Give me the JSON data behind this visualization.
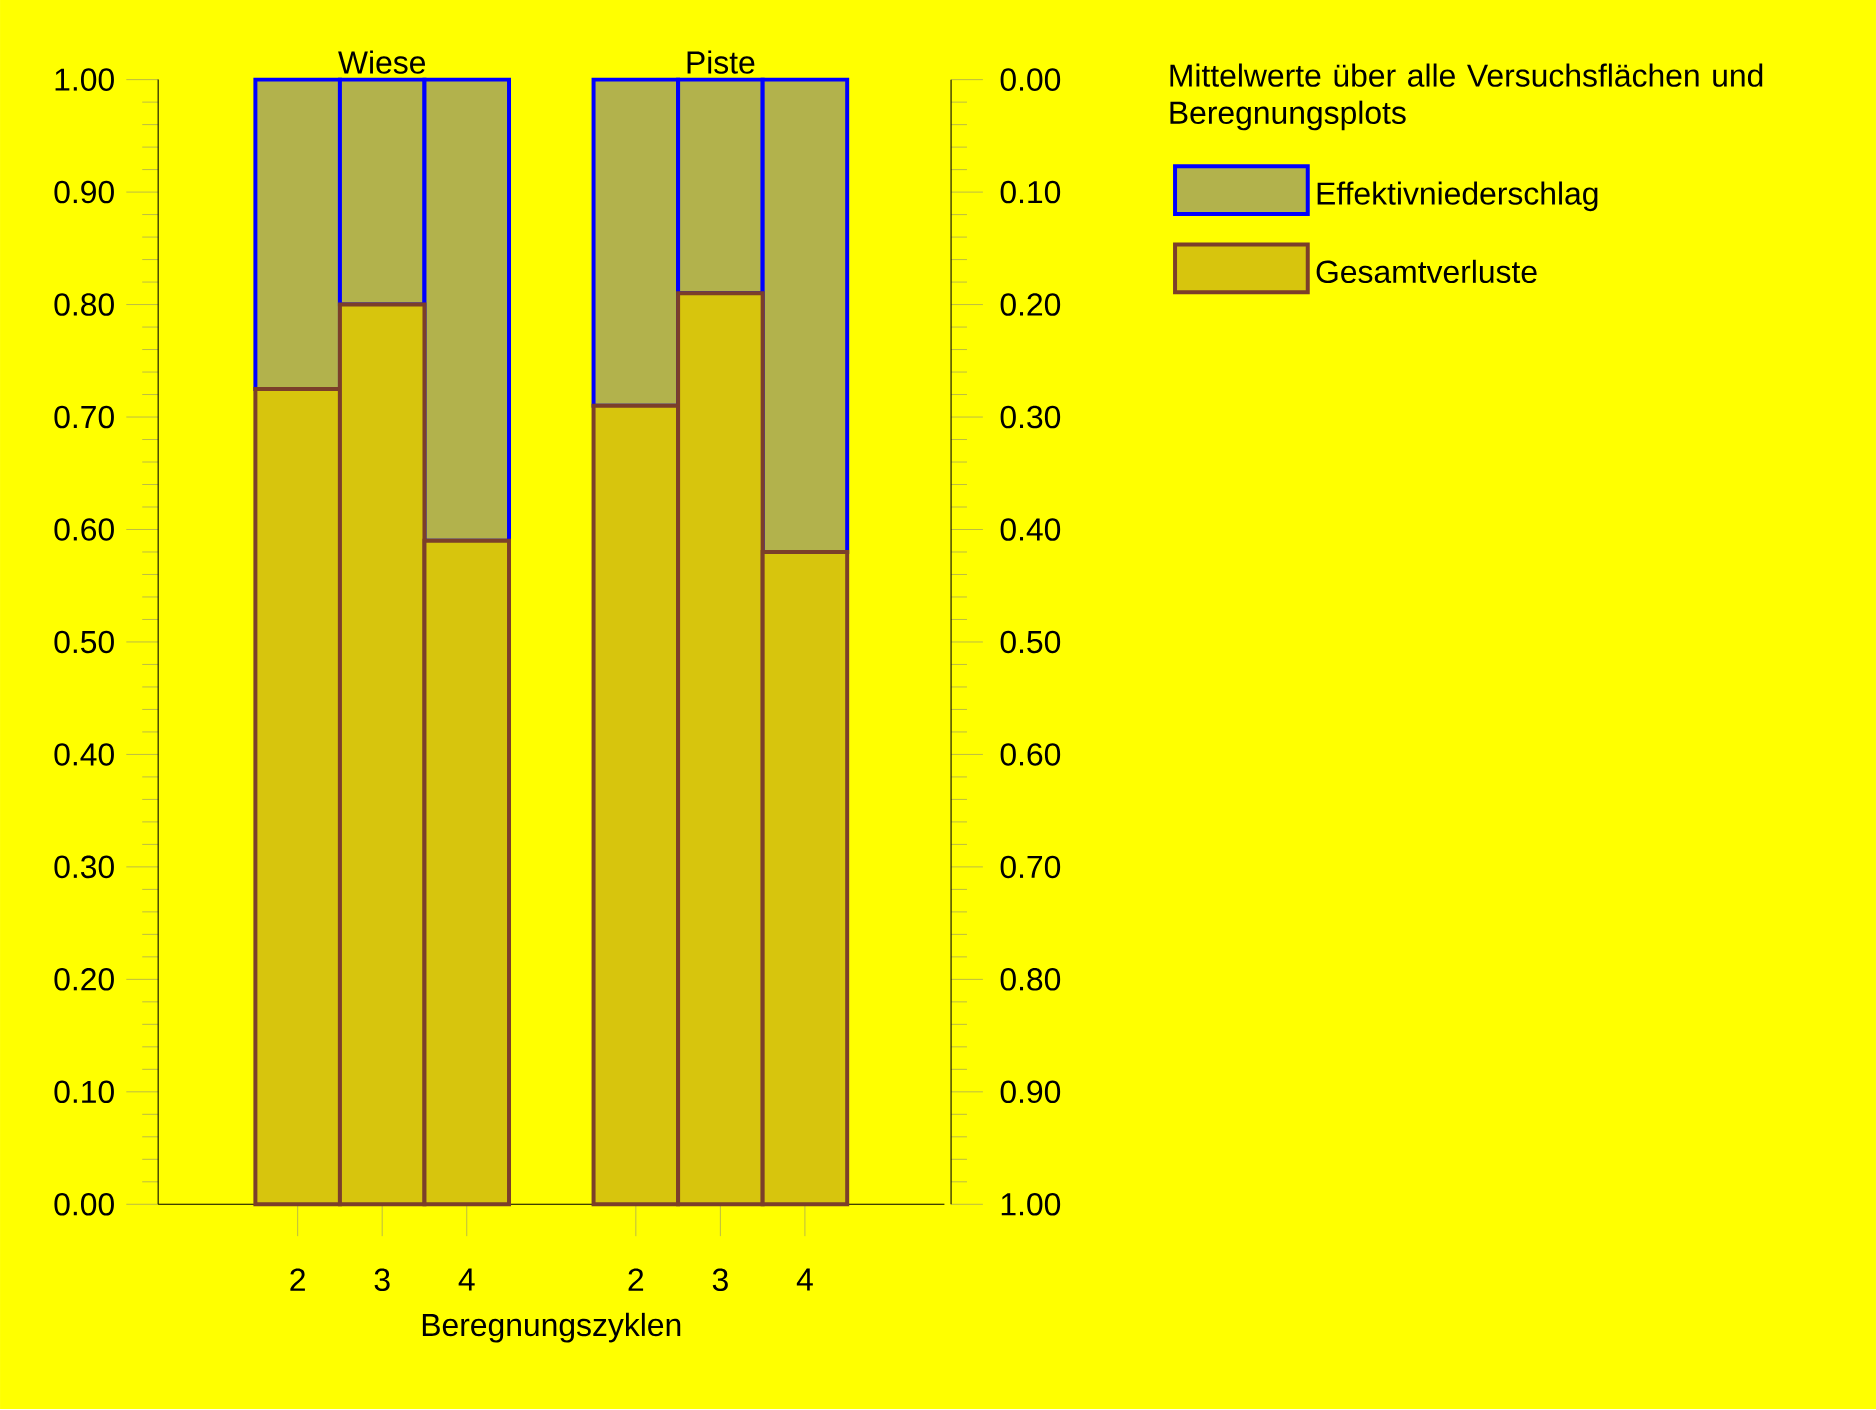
{
  "chart_data": {
    "type": "bar",
    "stacked": true,
    "categories": [
      "2",
      "3",
      "4",
      null,
      "2",
      "3",
      "4"
    ],
    "xlabel": "Beregnungszyklen",
    "legend_title": "Mittelwerte über alle Versuchsflächen und Beregnungsplots",
    "legend": "right",
    "annotations": [
      "Wiese",
      "Piste"
    ],
    "series": [
      {
        "name": "Gesamtverluste",
        "color": "#7b3f2a",
        "values": [
          0.725,
          0.8,
          0.59,
          null,
          0.71,
          0.81,
          0.58
        ]
      },
      {
        "name": "Effektivniederschlag",
        "color": "#0000ff",
        "values": [
          0.275,
          0.2,
          0.41,
          null,
          0.29,
          0.19,
          0.42
        ]
      }
    ],
    "ylim": [
      0,
      1
    ],
    "yticks": [
      {
        "value": 0,
        "label": "0.00"
      },
      {
        "value": 0.1,
        "label": "0.10"
      },
      {
        "value": 0.2,
        "label": "0.20"
      },
      {
        "value": 0.3,
        "label": "0.30"
      },
      {
        "value": 0.4,
        "label": "0.40"
      },
      {
        "value": 0.5,
        "label": "0.50"
      },
      {
        "value": 0.6,
        "label": "0.60"
      },
      {
        "value": 0.7,
        "label": "0.70"
      },
      {
        "value": 0.8,
        "label": "0.80"
      },
      {
        "value": 0.9,
        "label": "0.90"
      },
      {
        "value": 1,
        "label": "1.00"
      }
    ],
    "y2lim": [
      1,
      0
    ],
    "y2ticks": [
      {
        "value": 0,
        "label": "0.00"
      },
      {
        "value": 0.1,
        "label": "0.10"
      },
      {
        "value": 0.2,
        "label": "0.20"
      },
      {
        "value": 0.3,
        "label": "0.30"
      },
      {
        "value": 0.4,
        "label": "0.40"
      },
      {
        "value": 0.5,
        "label": "0.50"
      },
      {
        "value": 0.6,
        "label": "0.60"
      },
      {
        "value": 0.7,
        "label": "0.70"
      },
      {
        "value": 0.8,
        "label": "0.80"
      },
      {
        "value": 0.9,
        "label": "0.90"
      },
      {
        "value": 1,
        "label": "1.00"
      }
    ]
  }
}
